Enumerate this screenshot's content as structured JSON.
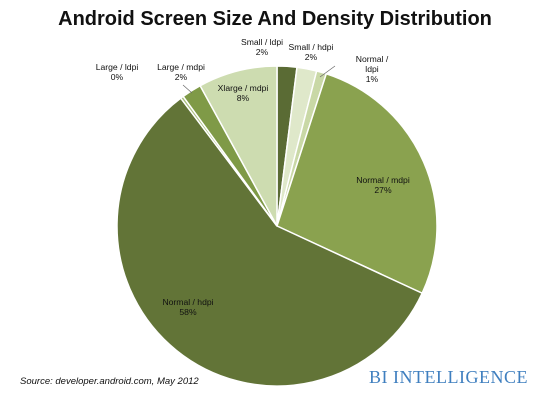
{
  "chart_data": {
    "type": "pie",
    "title": "Android Screen Size And Density Distribution",
    "slices": [
      {
        "label_lines": [
          "Small / ldpi",
          "2%"
        ],
        "value": 2,
        "color": "#5a6b34"
      },
      {
        "label_lines": [
          "Small / hdpi",
          "2%"
        ],
        "value": 2,
        "color": "#dfe8ca"
      },
      {
        "label_lines": [
          "Normal /",
          "ldpi",
          "1%"
        ],
        "value": 1,
        "color": "#c9d8a6"
      },
      {
        "label_lines": [
          "Normal / mdpi",
          "27%"
        ],
        "value": 27,
        "color": "#8aa24f"
      },
      {
        "label_lines": [
          "Normal / hdpi",
          "58%"
        ],
        "value": 58,
        "color": "#627437"
      },
      {
        "label_lines": [
          "Large / ldpi",
          "0%"
        ],
        "value": 0.3,
        "color": "#a9bf7d"
      },
      {
        "label_lines": [
          "Large / mdpi",
          "2%"
        ],
        "value": 2,
        "color": "#7f9a47"
      },
      {
        "label_lines": [
          "Xlarge / mdpi",
          "8%"
        ],
        "value": 8,
        "color": "#cddcb0"
      }
    ]
  },
  "source": "Source: developer.android.com, May 2012",
  "brand": {
    "first": "BI",
    "second": "INTELLIGENCE",
    "color": "#3f7fbf"
  }
}
